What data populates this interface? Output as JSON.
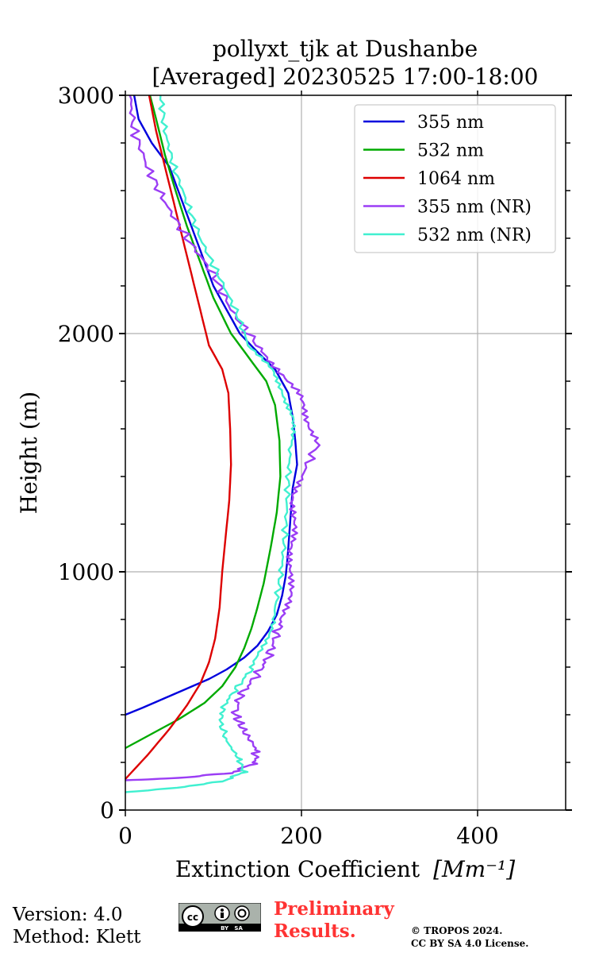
{
  "chart_data": {
    "type": "line",
    "title_line1": "pollyxt_tjk at Dushanbe",
    "title_line2": "[Averaged] 20230525 17:00-18:00",
    "xlabel": "Extinction Coefficient",
    "xlabel_unit": "[Mm⁻¹]",
    "ylabel": "Height (m)",
    "xlim": [
      0,
      500
    ],
    "ylim": [
      0,
      3000
    ],
    "xticks": [
      0,
      200,
      400
    ],
    "yticks": [
      0,
      1000,
      2000,
      3000
    ],
    "grid": true,
    "legend_position": "top-right",
    "series": [
      {
        "name": "355 nm",
        "color": "#0000dd",
        "noise": 0,
        "points": [
          [
            0,
            400
          ],
          [
            20,
            430
          ],
          [
            45,
            470
          ],
          [
            70,
            510
          ],
          [
            95,
            550
          ],
          [
            115,
            590
          ],
          [
            135,
            640
          ],
          [
            150,
            690
          ],
          [
            162,
            750
          ],
          [
            172,
            820
          ],
          [
            178,
            900
          ],
          [
            182,
            980
          ],
          [
            184,
            1050
          ],
          [
            186,
            1150
          ],
          [
            188,
            1250
          ],
          [
            190,
            1350
          ],
          [
            195,
            1450
          ],
          [
            193,
            1550
          ],
          [
            190,
            1650
          ],
          [
            185,
            1750
          ],
          [
            170,
            1850
          ],
          [
            148,
            1930
          ],
          [
            130,
            2000
          ],
          [
            115,
            2100
          ],
          [
            100,
            2200
          ],
          [
            90,
            2300
          ],
          [
            80,
            2400
          ],
          [
            70,
            2500
          ],
          [
            60,
            2600
          ],
          [
            50,
            2700
          ],
          [
            30,
            2800
          ],
          [
            15,
            2900
          ],
          [
            10,
            3000
          ]
        ]
      },
      {
        "name": "532 nm",
        "color": "#00aa00",
        "noise": 0,
        "points": [
          [
            0,
            260
          ],
          [
            30,
            320
          ],
          [
            60,
            380
          ],
          [
            90,
            450
          ],
          [
            110,
            520
          ],
          [
            125,
            600
          ],
          [
            135,
            680
          ],
          [
            143,
            760
          ],
          [
            150,
            850
          ],
          [
            157,
            950
          ],
          [
            165,
            1100
          ],
          [
            172,
            1250
          ],
          [
            176,
            1400
          ],
          [
            175,
            1550
          ],
          [
            170,
            1700
          ],
          [
            160,
            1800
          ],
          [
            140,
            1900
          ],
          [
            120,
            2000
          ],
          [
            100,
            2150
          ],
          [
            85,
            2300
          ],
          [
            70,
            2450
          ],
          [
            57,
            2600
          ],
          [
            45,
            2750
          ],
          [
            35,
            2900
          ],
          [
            28,
            3000
          ]
        ]
      },
      {
        "name": "1064 nm",
        "color": "#dd0000",
        "noise": 0,
        "points": [
          [
            0,
            130
          ],
          [
            25,
            230
          ],
          [
            50,
            340
          ],
          [
            70,
            440
          ],
          [
            85,
            530
          ],
          [
            95,
            620
          ],
          [
            102,
            720
          ],
          [
            107,
            850
          ],
          [
            110,
            1000
          ],
          [
            114,
            1150
          ],
          [
            118,
            1300
          ],
          [
            120,
            1450
          ],
          [
            119,
            1600
          ],
          [
            117,
            1750
          ],
          [
            110,
            1850
          ],
          [
            95,
            1950
          ],
          [
            85,
            2100
          ],
          [
            75,
            2250
          ],
          [
            65,
            2400
          ],
          [
            55,
            2550
          ],
          [
            45,
            2700
          ],
          [
            35,
            2850
          ],
          [
            27,
            3000
          ]
        ]
      },
      {
        "name": "355 nm (NR)",
        "color": "#9b3df5",
        "noise": 6,
        "points": [
          [
            0,
            125
          ],
          [
            60,
            135
          ],
          [
            120,
            155
          ],
          [
            148,
            200
          ],
          [
            148,
            260
          ],
          [
            135,
            330
          ],
          [
            125,
            400
          ],
          [
            130,
            480
          ],
          [
            148,
            560
          ],
          [
            162,
            640
          ],
          [
            170,
            720
          ],
          [
            178,
            800
          ],
          [
            185,
            900
          ],
          [
            190,
            1000
          ],
          [
            188,
            1100
          ],
          [
            190,
            1200
          ],
          [
            192,
            1300
          ],
          [
            200,
            1400
          ],
          [
            220,
            1550
          ],
          [
            205,
            1650
          ],
          [
            195,
            1750
          ],
          [
            175,
            1850
          ],
          [
            150,
            1950
          ],
          [
            120,
            2100
          ],
          [
            100,
            2250
          ],
          [
            70,
            2400
          ],
          [
            45,
            2550
          ],
          [
            25,
            2700
          ],
          [
            10,
            2850
          ],
          [
            5,
            3000
          ]
        ]
      },
      {
        "name": "532 nm (NR)",
        "color": "#40f0d0",
        "noise": 4,
        "points": [
          [
            0,
            75
          ],
          [
            50,
            90
          ],
          [
            110,
            120
          ],
          [
            135,
            160
          ],
          [
            128,
            220
          ],
          [
            115,
            290
          ],
          [
            108,
            370
          ],
          [
            112,
            440
          ],
          [
            128,
            520
          ],
          [
            145,
            600
          ],
          [
            158,
            700
          ],
          [
            168,
            800
          ],
          [
            175,
            950
          ],
          [
            180,
            1100
          ],
          [
            183,
            1250
          ],
          [
            185,
            1400
          ],
          [
            188,
            1550
          ],
          [
            190,
            1650
          ],
          [
            180,
            1750
          ],
          [
            165,
            1850
          ],
          [
            140,
            1950
          ],
          [
            125,
            2100
          ],
          [
            105,
            2250
          ],
          [
            85,
            2400
          ],
          [
            70,
            2550
          ],
          [
            55,
            2700
          ],
          [
            45,
            2850
          ],
          [
            40,
            3000
          ]
        ]
      }
    ]
  },
  "footer": {
    "version": "Version: 4.0",
    "method": "Method: Klett",
    "prelim_line1": "Preliminary",
    "prelim_line2": "Results.",
    "copyright_line1": "© TROPOS 2024.",
    "copyright_line2": "CC BY SA 4.0 License.",
    "cc_badge_text": "BY   SA"
  }
}
